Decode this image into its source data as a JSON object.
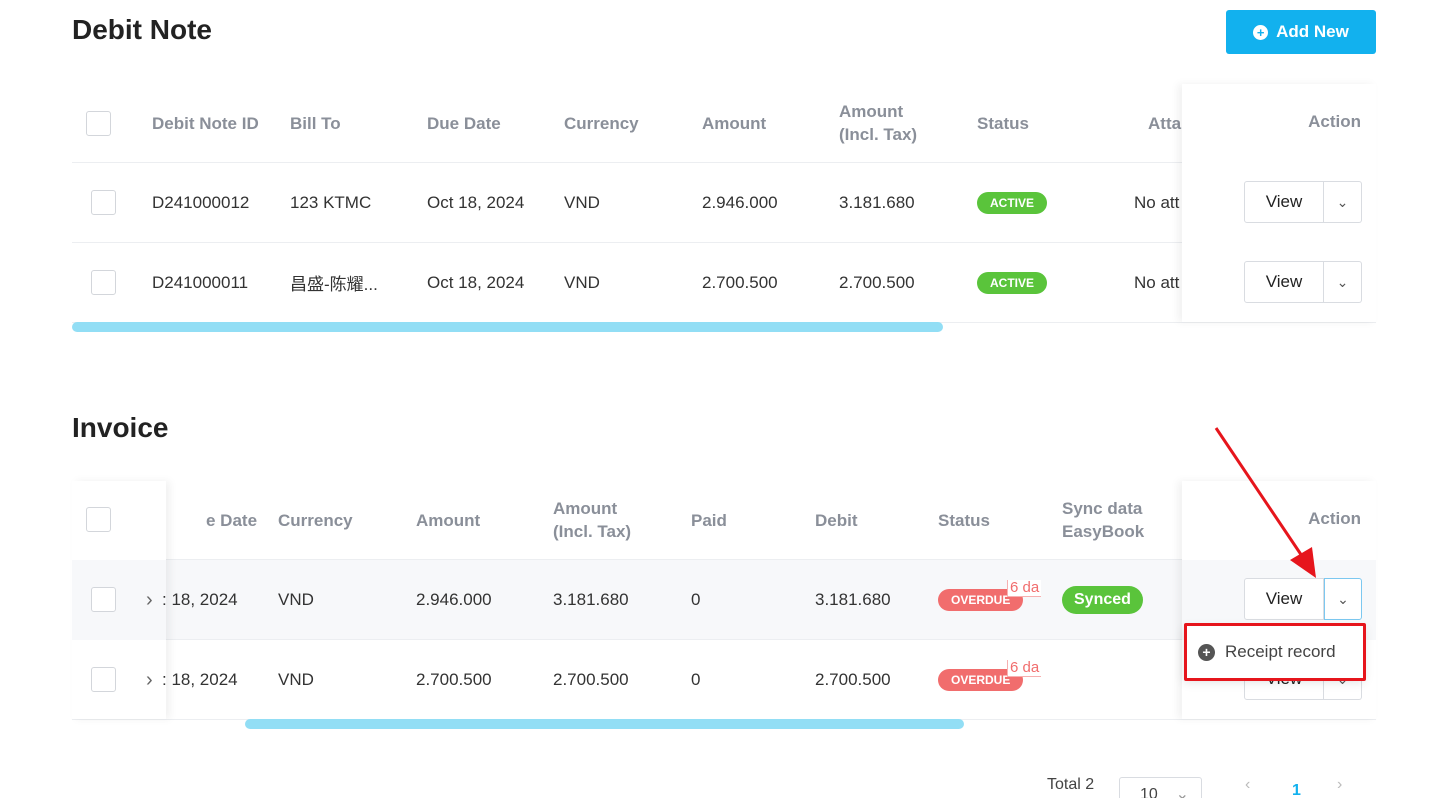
{
  "debit_note": {
    "title": "Debit Note",
    "add_new_label": "Add New",
    "columns": {
      "id": "Debit Note ID",
      "bill_to": "Bill To",
      "due_date": "Due Date",
      "currency": "Currency",
      "amount": "Amount",
      "amount_tax": "Amount (Incl. Tax)",
      "status": "Status",
      "attachment": "Atta",
      "action": "Action"
    },
    "rows": [
      {
        "id": "D241000012",
        "bill_to": "123 KTMC",
        "due_date": "Oct 18, 2024",
        "currency": "VND",
        "amount": "2.946.000",
        "amount_tax": "3.181.680",
        "status": "ACTIVE",
        "attachment": "No att",
        "view_label": "View"
      },
      {
        "id": "D241000011",
        "bill_to": "昌盛-陈耀...",
        "due_date": "Oct 18, 2024",
        "currency": "VND",
        "amount": "2.700.500",
        "amount_tax": "2.700.500",
        "status": "ACTIVE",
        "attachment": "No att",
        "view_label": "View"
      }
    ]
  },
  "invoice": {
    "title": "Invoice",
    "columns": {
      "due_date": "e Date",
      "currency": "Currency",
      "amount": "Amount",
      "amount_tax": "Amount (Incl. Tax)",
      "paid": "Paid",
      "debit": "Debit",
      "status": "Status",
      "sync": "Sync data EasyBook",
      "action": "Action"
    },
    "rows": [
      {
        "expand": "›",
        "due_date": ": 18, 2024",
        "currency": "VND",
        "amount": "2.946.000",
        "amount_tax": "3.181.680",
        "paid": "0",
        "debit": "3.181.680",
        "status": "OVERDUE",
        "overdue_tag": "6 da",
        "sync": "Synced",
        "view_label": "View"
      },
      {
        "expand": "›",
        "due_date": ": 18, 2024",
        "currency": "VND",
        "amount": "2.700.500",
        "amount_tax": "2.700.500",
        "paid": "0",
        "debit": "2.700.500",
        "status": "OVERDUE",
        "overdue_tag": "6 da",
        "sync": "",
        "view_label": "View"
      }
    ],
    "dropdown_menu": {
      "receipt_record_label": "Receipt record"
    }
  },
  "pagination": {
    "total_label": "Total 2",
    "page_size": "10",
    "current_page": "1",
    "prev_icon": "chevron-left-icon",
    "next_icon": "chevron-right-icon"
  },
  "colors": {
    "primary": "#12b1ee",
    "active": "#5ac43b",
    "overdue": "#f16d6d",
    "annotation": "#e6151c"
  }
}
